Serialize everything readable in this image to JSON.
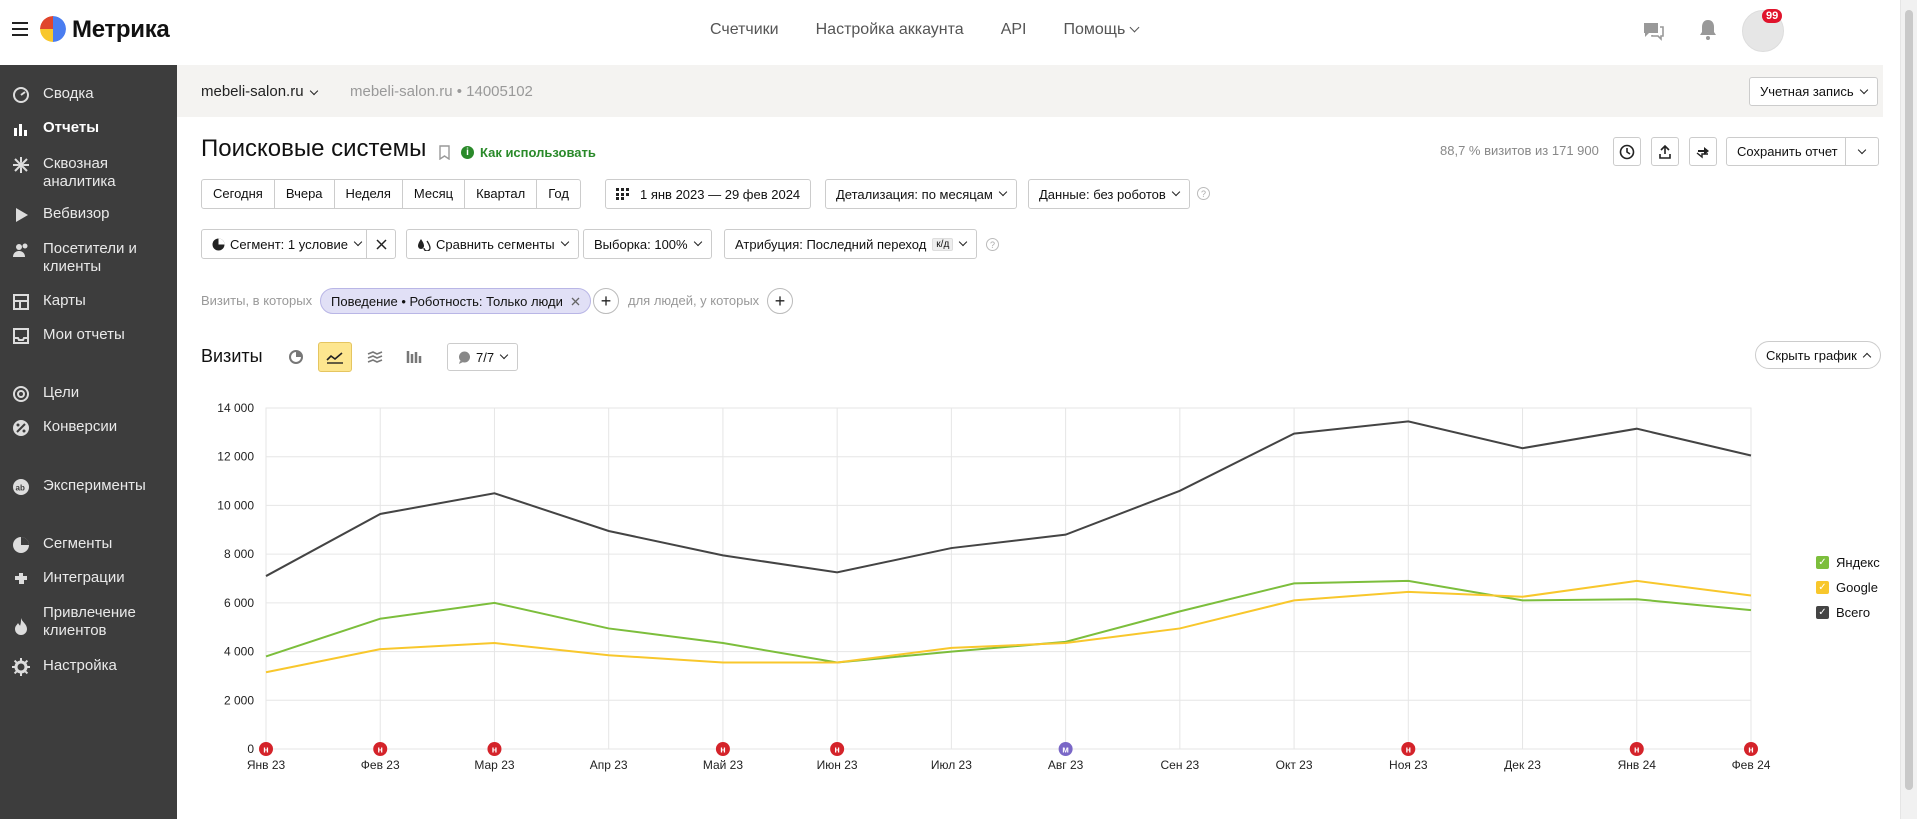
{
  "header": {
    "app_name": "Метрика",
    "nav": [
      "Счетчики",
      "Настройка аккаунта",
      "API",
      "Помощь"
    ],
    "notifications_count": "99"
  },
  "sidebar": {
    "items": [
      {
        "label": "Сводка",
        "icon": "dashboard-icon"
      },
      {
        "label": "Отчеты",
        "icon": "bar-chart-icon",
        "active": true
      },
      {
        "label": "Сквозная аналитика",
        "icon": "flower-icon"
      },
      {
        "label": "Вебвизор",
        "icon": "play-icon"
      },
      {
        "label": "Посетители и клиенты",
        "icon": "users-icon"
      },
      {
        "label": "Карты",
        "icon": "map-icon"
      },
      {
        "label": "Мои отчеты",
        "icon": "inbox-icon"
      },
      {
        "label": "Цели",
        "icon": "target-icon"
      },
      {
        "label": "Конверсии",
        "icon": "percent-icon"
      },
      {
        "label": "Эксперименты",
        "icon": "ab-icon"
      },
      {
        "label": "Сегменты",
        "icon": "pie-icon"
      },
      {
        "label": "Интеграции",
        "icon": "puzzle-icon"
      },
      {
        "label": "Привлечение клиентов",
        "icon": "fire-icon"
      },
      {
        "label": "Настройка",
        "icon": "gear-icon"
      }
    ]
  },
  "subheader": {
    "site": "mebeli-salon.ru",
    "site_muted": "mebeli-salon.ru",
    "counter_id": "14005102",
    "account_button": "Учетная запись"
  },
  "report": {
    "title": "Поисковые системы",
    "how_to_use": "Как использовать",
    "visits_share": "88,7 % визитов из 171 900",
    "save_report": "Сохранить отчет",
    "periods": [
      "Сегодня",
      "Вчера",
      "Неделя",
      "Месяц",
      "Квартал",
      "Год"
    ],
    "date_range": "1 янв 2023 — 29 фев 2024",
    "detail": "Детализация: по месяцам",
    "data": "Данные: без роботов",
    "segment": "Сегмент: 1 условие",
    "compare_segments": "Сравнить сегменты",
    "sample": "Выборка: 100%",
    "attribution": "Атрибуция: Последний переход",
    "attribution_tag": "к/д",
    "filter_prefix": "Визиты, в которых",
    "filter_chip": "Поведение • Роботность: Только люди",
    "filter_people": "для людей, у которых",
    "chart_title": "Визиты",
    "series_count": "7/7",
    "hide_chart": "Скрыть график"
  },
  "chart_data": {
    "type": "line",
    "categories": [
      "Янв 23",
      "Фев 23",
      "Мар 23",
      "Апр 23",
      "Май 23",
      "Июн 23",
      "Июл 23",
      "Авг 23",
      "Сен 23",
      "Окт 23",
      "Ноя 23",
      "Дек 23",
      "Янв 24",
      "Фев 24"
    ],
    "yticks": [
      "0",
      "2 000",
      "4 000",
      "6 000",
      "8 000",
      "10 000",
      "12 000",
      "14 000"
    ],
    "ylim": [
      0,
      14000
    ],
    "series": [
      {
        "name": "Яндекс",
        "color": "#7cbe3c",
        "values": [
          3800,
          5350,
          6000,
          4950,
          4350,
          3550,
          4000,
          4400,
          5650,
          6800,
          6900,
          6100,
          6150,
          5700
        ]
      },
      {
        "name": "Google",
        "color": "#f8c72c",
        "values": [
          3150,
          4100,
          4350,
          3850,
          3550,
          3550,
          4150,
          4350,
          4950,
          6100,
          6450,
          6250,
          6900,
          6300
        ]
      },
      {
        "name": "Всего",
        "color": "#444444",
        "values": [
          7100,
          9650,
          10500,
          8950,
          7950,
          7250,
          8250,
          8800,
          10600,
          12950,
          13450,
          12350,
          13150,
          12050
        ]
      }
    ],
    "legend": "right",
    "grid": true,
    "event_markers": [
      {
        "label": "н",
        "color": "#d4232a",
        "category": "Янв 23"
      },
      {
        "label": "н",
        "color": "#d4232a",
        "category": "Фев 23"
      },
      {
        "label": "н",
        "color": "#d4232a",
        "category": "Мар 23"
      },
      {
        "label": "н",
        "color": "#d4232a",
        "category": "Май 23"
      },
      {
        "label": "н",
        "color": "#d4232a",
        "category": "Июн 23"
      },
      {
        "label": "м",
        "color": "#7a67c7",
        "category": "Авг 23"
      },
      {
        "label": "н",
        "color": "#d4232a",
        "category": "Ноя 23"
      },
      {
        "label": "н",
        "color": "#d4232a",
        "category": "Янв 24"
      },
      {
        "label": "н",
        "color": "#d4232a",
        "category": "Фев 24"
      }
    ]
  }
}
